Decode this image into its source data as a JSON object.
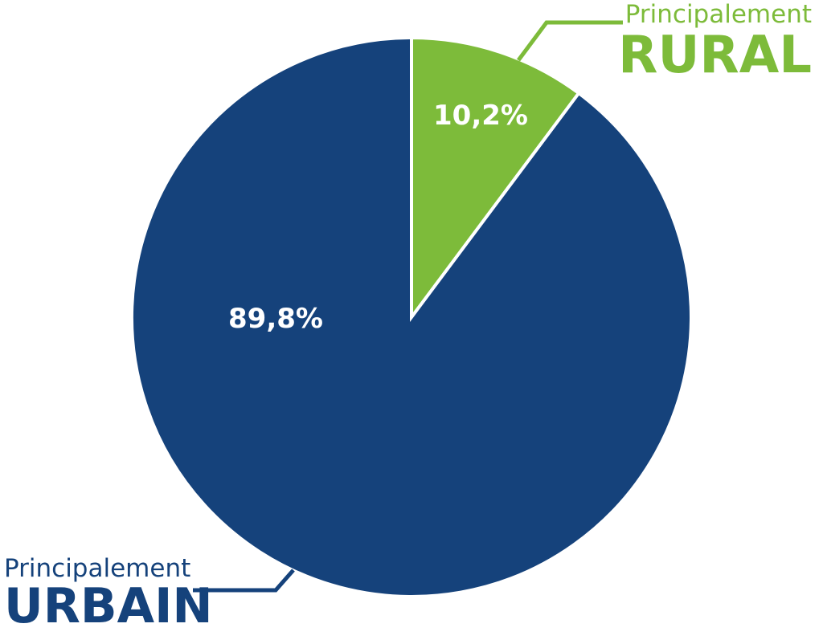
{
  "chart_data": {
    "type": "pie",
    "categories": [
      "RURAL",
      "URBAIN"
    ],
    "category_prefixes": [
      "Principalement",
      "Principalement"
    ],
    "values": [
      10.2,
      89.8
    ],
    "value_labels": [
      "10,2%",
      "89,8%"
    ],
    "colors": [
      "#7dbb3a",
      "#15427b"
    ]
  }
}
